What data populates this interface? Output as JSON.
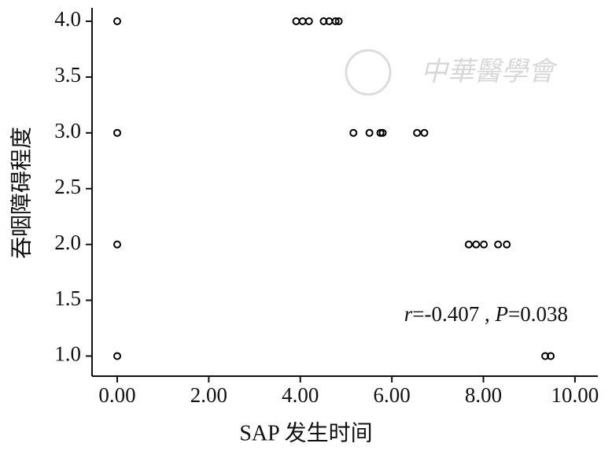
{
  "chart_data": {
    "type": "scatter",
    "xlabel": "SAP 发生时间",
    "ylabel": "吞咽障碍程度",
    "annotation": [
      "r",
      "=-0.407 , ",
      "P",
      "=0.038"
    ],
    "watermark": "中華醫學會",
    "xlim": [
      -0.55,
      10.5
    ],
    "ylim": [
      0.82,
      4.12
    ],
    "xticks": [
      {
        "value": 0,
        "label": "0.00"
      },
      {
        "value": 2,
        "label": "2.00"
      },
      {
        "value": 4,
        "label": "4.00"
      },
      {
        "value": 6,
        "label": "6.00"
      },
      {
        "value": 8,
        "label": "8.00"
      },
      {
        "value": 10,
        "label": "10.00"
      }
    ],
    "yticks": [
      {
        "value": 1,
        "label": "1.0"
      },
      {
        "value": 1.5,
        "label": "1.5"
      },
      {
        "value": 2,
        "label": "2.0"
      },
      {
        "value": 2.5,
        "label": "2.5"
      },
      {
        "value": 3,
        "label": "3.0"
      },
      {
        "value": 3.5,
        "label": "3.5"
      },
      {
        "value": 4,
        "label": "4.0"
      }
    ],
    "grid": false,
    "color": "#000000",
    "x": [
      0,
      0,
      0,
      0,
      3.91,
      4.05,
      4.19,
      4.51,
      4.63,
      4.77,
      4.84,
      5.16,
      5.51,
      5.75,
      5.8,
      6.55,
      6.71,
      7.68,
      7.84,
      8.01,
      8.32,
      8.51,
      9.35,
      9.47
    ],
    "y": [
      4,
      3,
      2,
      1,
      4,
      4,
      4,
      4,
      4,
      4,
      4,
      3,
      3,
      3,
      3,
      3,
      3,
      2,
      2,
      2,
      2,
      2,
      1,
      1
    ]
  }
}
